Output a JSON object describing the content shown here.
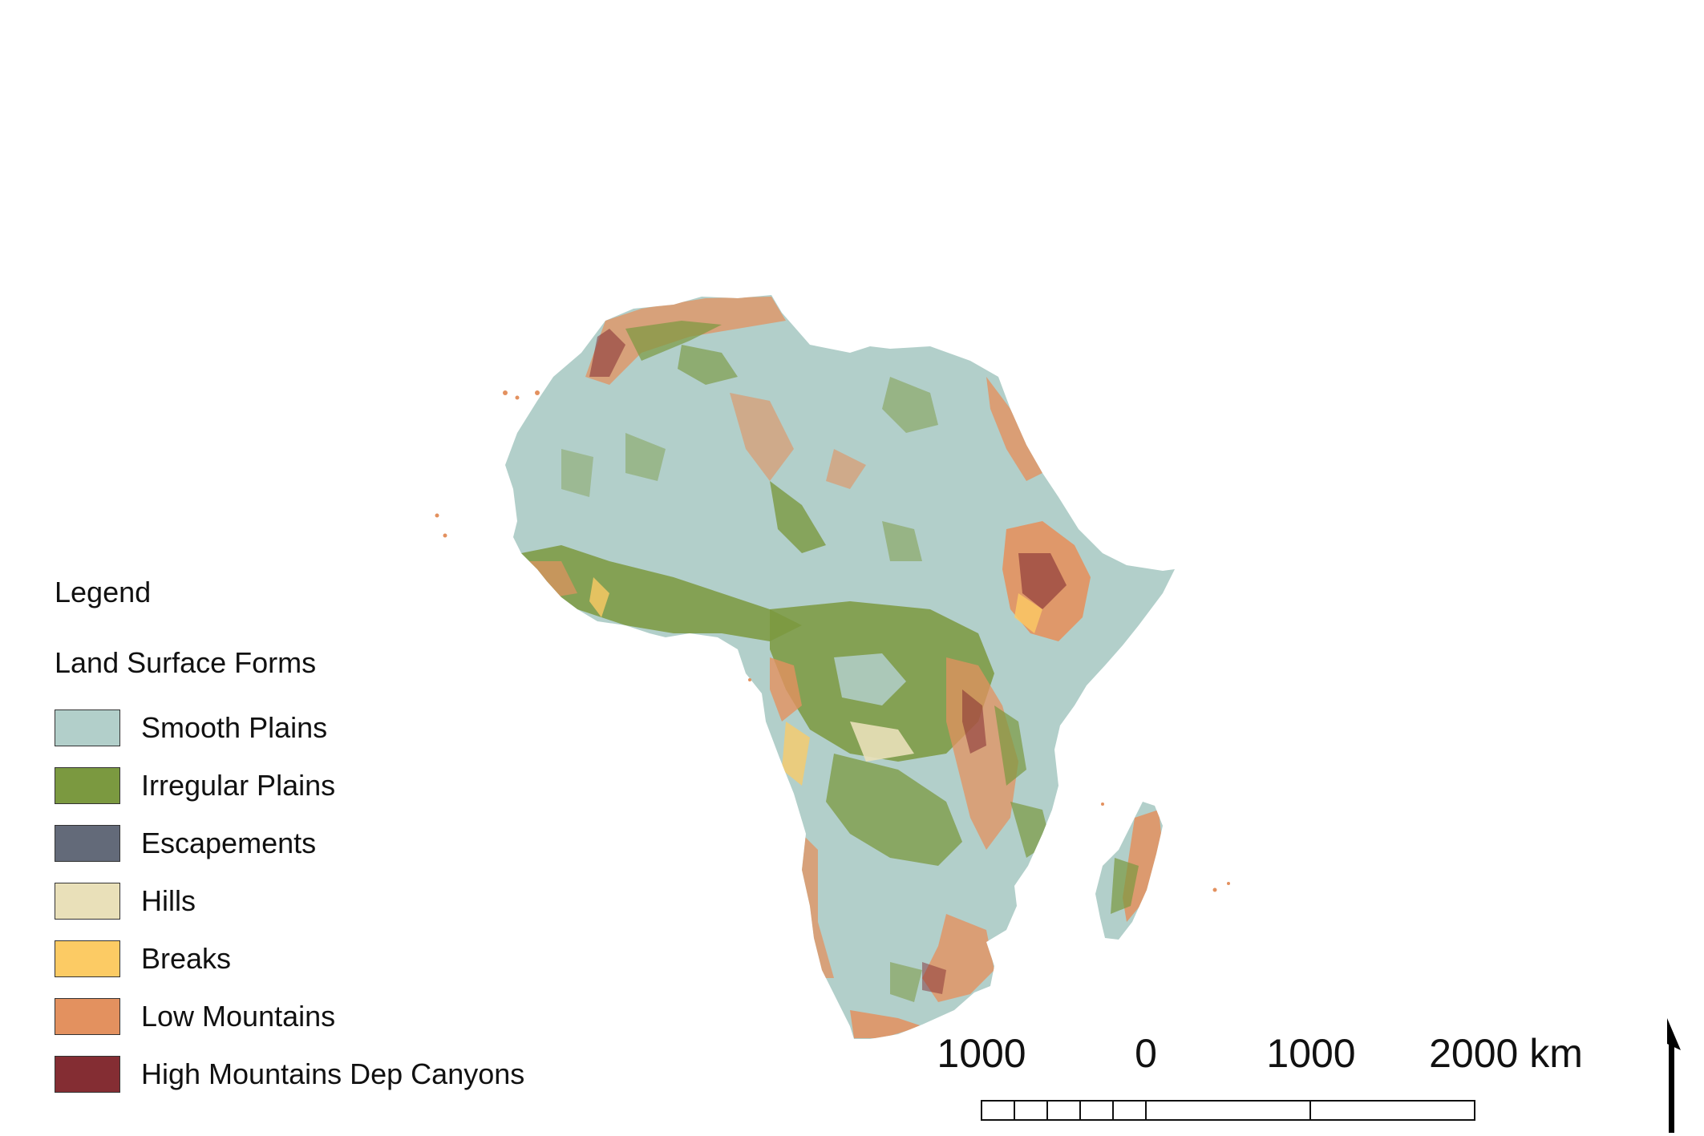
{
  "legend": {
    "title": "Legend",
    "subtitle": "Land Surface Forms",
    "items": [
      {
        "label": "Smooth Plains",
        "color": "#b2cfca"
      },
      {
        "label": "Irregular Plains",
        "color": "#7b9940"
      },
      {
        "label": "Escapements",
        "color": "#636a79"
      },
      {
        "label": "Hills",
        "color": "#e9e0b9"
      },
      {
        "label": "Breaks",
        "color": "#fccb64"
      },
      {
        "label": "Low Mountains",
        "color": "#e3915f"
      },
      {
        "label": "High Mountains Dep Canyons",
        "color": "#842d33"
      }
    ]
  },
  "scale_bar": {
    "labels": [
      "1000",
      "0",
      "1000",
      "2000 km"
    ]
  }
}
